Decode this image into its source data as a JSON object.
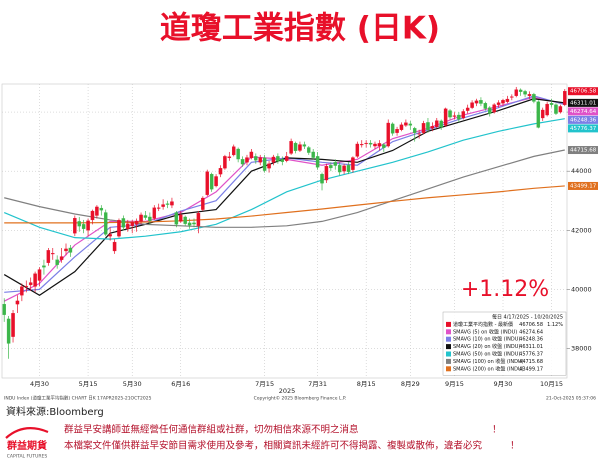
{
  "header": {
    "title": "道瓊工業指數 (日K)"
  },
  "chart_data": {
    "type": "candlestick",
    "period_label": "每日 4/17/2025 - 10/20/2025",
    "name": "道瓊工業平均指數 - 最新價",
    "change_label": "1.12%",
    "annotation": "+1.12%",
    "year_label": "2025",
    "up_color": "#e8102a",
    "down_color": "#3cb64a",
    "grid": true,
    "legend": "bottom-right",
    "ylim": [
      37000,
      46950
    ],
    "yticks": [
      38000,
      40000,
      42000,
      44000,
      46000
    ],
    "categories": [
      null,
      null,
      null,
      null,
      null,
      null,
      null,
      null,
      "4月30",
      null,
      null,
      null,
      null,
      null,
      null,
      null,
      null,
      null,
      null,
      "5月15",
      null,
      null,
      null,
      null,
      null,
      null,
      null,
      null,
      null,
      "5月30",
      null,
      null,
      null,
      null,
      null,
      null,
      null,
      null,
      null,
      null,
      "6月16",
      null,
      null,
      null,
      null,
      null,
      null,
      null,
      null,
      null,
      null,
      null,
      null,
      null,
      null,
      null,
      null,
      null,
      null,
      "7月15",
      null,
      null,
      null,
      null,
      null,
      null,
      null,
      null,
      null,
      null,
      null,
      "7月31",
      null,
      null,
      null,
      null,
      null,
      null,
      null,
      null,
      null,
      null,
      "8月15",
      null,
      null,
      null,
      null,
      null,
      null,
      null,
      null,
      null,
      "8月29",
      null,
      null,
      null,
      null,
      null,
      null,
      null,
      null,
      null,
      "9月15",
      null,
      null,
      null,
      null,
      null,
      null,
      null,
      null,
      null,
      null,
      "9月30",
      null,
      null,
      null,
      null,
      null,
      null,
      null,
      null,
      null,
      null,
      "10月15",
      null,
      null,
      null
    ],
    "open": [
      39500,
      39000,
      38400,
      39500,
      39800,
      40100,
      40150,
      40100,
      40300,
      40800,
      40900,
      41200,
      41000,
      41000,
      41300,
      41400,
      41900,
      42300,
      42200,
      42000,
      42350,
      42500,
      42750,
      42600,
      41800,
      41300,
      41800,
      42400,
      42050,
      42150,
      42200,
      42300,
      42500,
      42450,
      42400,
      42750,
      42800,
      42900,
      42850,
      42600,
      42300,
      42450,
      42250,
      42250,
      42150,
      42700,
      43200,
      43900,
      43500,
      43900,
      44100,
      44450,
      44550,
      44750,
      44400,
      44300,
      44450,
      44500,
      44300,
      44450,
      44100,
      44300,
      44500,
      44400,
      44350,
      44600,
      44950,
      44700,
      44900,
      44800,
      44650,
      44500,
      43900,
      43700,
      44200,
      44300,
      44200,
      44000,
      44200,
      44050,
      44500,
      44900,
      44950,
      44950,
      44850,
      44850,
      44900,
      44850,
      45600,
      45300,
      45400,
      45550,
      45600,
      45450,
      45250,
      45300,
      45650,
      45450,
      45500,
      45700,
      45550,
      46050,
      45850,
      45900,
      45800,
      46050,
      46150,
      46300,
      46400,
      46300,
      46150,
      46000,
      46250,
      46300,
      46350,
      46500,
      46550,
      46750,
      46700,
      46550,
      46600,
      46350,
      45800,
      45900,
      46300,
      46250,
      46000,
      46250
    ],
    "high": [
      39700,
      39100,
      39300,
      39800,
      40200,
      40300,
      40400,
      40600,
      40750,
      41000,
      41400,
      41400,
      41150,
      41400,
      41550,
      41500,
      42500,
      42450,
      42350,
      42400,
      42700,
      42850,
      42850,
      42700,
      42100,
      41700,
      42400,
      42500,
      42350,
      42350,
      42400,
      42600,
      42650,
      42600,
      42850,
      42900,
      43050,
      43000,
      43100,
      42650,
      42650,
      42500,
      42400,
      42400,
      42650,
      43150,
      44050,
      43950,
      43900,
      44200,
      44550,
      44650,
      44900,
      44800,
      44500,
      44550,
      44750,
      44600,
      44550,
      44550,
      44350,
      44550,
      44600,
      44500,
      44650,
      45100,
      45000,
      45000,
      45000,
      44850,
      44750,
      44650,
      43950,
      44250,
      44300,
      44400,
      44300,
      44250,
      44300,
      44500,
      45000,
      45050,
      45050,
      45050,
      45000,
      45050,
      44950,
      45750,
      45650,
      45500,
      45650,
      45750,
      45700,
      45500,
      45400,
      45700,
      45800,
      45650,
      45800,
      45750,
      46150,
      46100,
      46000,
      46000,
      46100,
      46250,
      46400,
      46450,
      46500,
      46350,
      46200,
      46300,
      46400,
      46450,
      46550,
      46600,
      46850,
      46800,
      46750,
      46700,
      46650,
      46400,
      46150,
      46350,
      46450,
      46300,
      46250,
      46780
    ],
    "low": [
      38900,
      37650,
      38200,
      39200,
      39600,
      39900,
      39950,
      39900,
      40100,
      40500,
      40800,
      41000,
      40700,
      40900,
      41150,
      41100,
      41800,
      41950,
      41900,
      41800,
      42200,
      42400,
      42500,
      41800,
      41650,
      41200,
      41750,
      42000,
      41950,
      41900,
      41950,
      42200,
      42350,
      42200,
      42350,
      42650,
      42700,
      42750,
      42750,
      42100,
      42250,
      42150,
      42050,
      42100,
      41900,
      42650,
      43150,
      43300,
      43450,
      43800,
      44050,
      44350,
      44500,
      44300,
      44150,
      44200,
      44400,
      44250,
      44200,
      43950,
      43950,
      44200,
      44250,
      44200,
      44300,
      44550,
      44600,
      44650,
      44750,
      44550,
      44400,
      44050,
      43350,
      43600,
      44000,
      44050,
      43850,
      43900,
      43900,
      43950,
      44450,
      44800,
      44800,
      44800,
      44750,
      44700,
      44650,
      44800,
      45200,
      45200,
      45350,
      45500,
      45400,
      45000,
      45100,
      45250,
      45300,
      45350,
      45450,
      45400,
      45500,
      45750,
      45750,
      45650,
      45750,
      45950,
      46100,
      46200,
      46200,
      46050,
      45850,
      45950,
      46150,
      46200,
      46300,
      46400,
      46500,
      46550,
      46500,
      46450,
      46300,
      45450,
      45700,
      45850,
      46150,
      45900,
      45950,
      46200
    ],
    "close": [
      39140,
      38170,
      39190,
      39610,
      40090,
      40110,
      40230,
      40530,
      40670,
      40750,
      41320,
      41220,
      40830,
      41110,
      41370,
      41250,
      42410,
      42140,
      42050,
      42320,
      42650,
      42790,
      42680,
      41860,
      41860,
      41600,
      42340,
      42100,
      42220,
      42270,
      42310,
      42520,
      42430,
      42320,
      42760,
      42760,
      42870,
      42870,
      42970,
      42200,
      42520,
      42220,
      42170,
      42210,
      42580,
      43090,
      43980,
      43390,
      43820,
      44100,
      44500,
      44490,
      44830,
      44410,
      44240,
      44460,
      44650,
      44370,
      44460,
      44020,
      44250,
      44480,
      44340,
      44320,
      44500,
      45010,
      44690,
      44900,
      44840,
      44630,
      44460,
      44130,
      43590,
      44170,
      44110,
      44190,
      43970,
      44180,
      43980,
      44460,
      44920,
      44910,
      44950,
      44910,
      44920,
      44940,
      44790,
      45630,
      45280,
      45420,
      45570,
      45640,
      45550,
      45300,
      45270,
      45620,
      45400,
      45520,
      45710,
      45490,
      46110,
      45830,
      45880,
      45760,
      46020,
      46140,
      46320,
      46380,
      46290,
      46120,
      45950,
      46250,
      46320,
      46400,
      46440,
      46520,
      46760,
      46690,
      46600,
      46600,
      46360,
      45480,
      46070,
      46270,
      46250,
      45950,
      46190,
      46706.58
    ],
    "overlay_x": [
      0,
      8,
      16,
      24,
      32,
      40,
      48,
      56,
      64,
      72,
      80,
      88,
      96,
      104,
      112,
      120,
      127
    ],
    "overlays": [
      {
        "name": "SMAVG (5) on 收盤 (INDU)",
        "color": "#e052c8",
        "values": [
          39600,
          40200,
          41500,
          42300,
          42300,
          42600,
          43300,
          44480,
          44400,
          44200,
          44400,
          45100,
          45450,
          45900,
          46200,
          46500,
          46274.64
        ]
      },
      {
        "name": "SMAVG (10) on 收盤 (INDU)",
        "color": "#7b7fe6",
        "values": [
          39900,
          40000,
          41100,
          42100,
          42200,
          42650,
          43000,
          44300,
          44450,
          44300,
          44200,
          45000,
          45400,
          45800,
          46150,
          46550,
          46248.36
        ]
      },
      {
        "name": "SMAVG (20) on 收盤 (INDU)",
        "color": "#111111",
        "values": [
          40500,
          39800,
          40600,
          41900,
          42200,
          42550,
          42700,
          44000,
          44450,
          44400,
          44300,
          44700,
          45350,
          45700,
          46050,
          46450,
          46311.01
        ]
      },
      {
        "name": "SMAVG (50) on 收盤 (INDU)",
        "color": "#22c3cc",
        "values": [
          42600,
          42100,
          41750,
          41700,
          41800,
          41950,
          42200,
          42700,
          43300,
          43700,
          44000,
          44300,
          44650,
          45050,
          45350,
          45600,
          45776.37
        ]
      },
      {
        "name": "SMAVG (100) on 收盤 (INDU)",
        "color": "#808080",
        "values": [
          43100,
          42800,
          42550,
          42350,
          42200,
          42150,
          42100,
          42100,
          42150,
          42300,
          42600,
          43000,
          43400,
          43800,
          44150,
          44500,
          44715.68
        ]
      },
      {
        "name": "SMAVG (200) on 收盤 (INDU)",
        "color": "#e0701e",
        "values": [
          42250,
          42250,
          42250,
          42260,
          42280,
          42320,
          42380,
          42480,
          42600,
          42720,
          42850,
          42980,
          43100,
          43200,
          43300,
          43420,
          43499.17
        ]
      }
    ],
    "footer_left": "INDU Index (道瓊工業平均指數) CHART 日K 17APR2025-21OCT2025",
    "footer_center": "Copyright© 2025 Bloomberg Finance L.P.",
    "footer_right": "21-Oct-2025 05:37:06"
  },
  "source": "資料來源:Bloomberg",
  "disclaimers": [
    {
      "text": "群益早安講師並無經營任何通信群組或社群，切勿相信來源不明之消息",
      "end": "！"
    },
    {
      "text": "本檔案文件僅供群益早安節目需求使用及參考，相關資訊未經許可不得揭露、複製或散佈，違者必究",
      "end": "！"
    }
  ],
  "logo": {
    "name": "群益期貨",
    "sub": "CAPITAL FUTURES"
  }
}
